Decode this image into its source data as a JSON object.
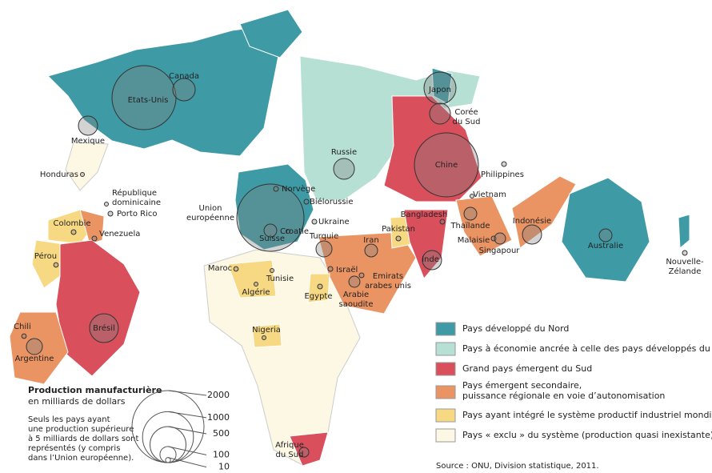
{
  "legend_classes": [
    {
      "label": [
        "Pays développé du Nord"
      ],
      "color": "#3e9ba5"
    },
    {
      "label": [
        "Pays à économie ancrée à celle des pays développés du Nord"
      ],
      "color": "#b7e0d5"
    },
    {
      "label": [
        "Grand pays émergent du Sud"
      ],
      "color": "#d94f5c"
    },
    {
      "label": [
        "Pays émergent secondaire,",
        "puissance régionale en voie d’autonomisation"
      ],
      "color": "#ea9464"
    },
    {
      "label": [
        "Pays ayant intégré le système productif industriel mondial"
      ],
      "color": "#f8d983"
    },
    {
      "label": [
        "Pays « exclu » du système (production quasi inexistante)"
      ],
      "color": "#fdf8e4"
    }
  ],
  "size_legend": {
    "title": "Production manufacturière",
    "subtitle": "en milliards de dollars",
    "values": [
      2000,
      1000,
      500,
      100,
      10
    ],
    "note": [
      "Seuls les pays ayant",
      "une production supérieure",
      "à 5 milliards de dollars sont",
      "représentés (y compris",
      "dans l’Union européenne)."
    ]
  },
  "countries": [
    {
      "label": [
        "Etats-Unis"
      ],
      "production": 1580
    },
    {
      "label": [
        "Canada"
      ],
      "production": 194
    },
    {
      "label": [
        "Mexique"
      ],
      "production": 142
    },
    {
      "label": [
        "Honduras"
      ],
      "production": 6
    },
    {
      "label": [
        "République",
        "dominicaine"
      ],
      "production": 6
    },
    {
      "label": [
        "Porto Rico"
      ],
      "production": 9
    },
    {
      "label": [
        "Venezuela"
      ],
      "production": 9
    },
    {
      "label": [
        "Colombie"
      ],
      "production": 9
    },
    {
      "label": [
        "Pérou"
      ],
      "production": 8
    },
    {
      "label": [
        "Brésil"
      ],
      "production": 320
    },
    {
      "label": [
        "Chili"
      ],
      "production": 8
    },
    {
      "label": [
        "Argentine"
      ],
      "production": 99
    },
    {
      "label": [
        "Union",
        "européenne"
      ],
      "production": 1742
    },
    {
      "label": [
        "Norvège"
      ],
      "production": 9
    },
    {
      "label": [
        "Biélorussie"
      ],
      "production": 9
    },
    {
      "label": [
        "Ukraine"
      ],
      "production": 9
    },
    {
      "label": [
        "Croatie"
      ],
      "production": 6
    },
    {
      "label": [
        "Suisse"
      ],
      "production": 63
    },
    {
      "label": [
        "Turquie"
      ],
      "production": 99
    },
    {
      "label": [
        "Russie"
      ],
      "production": 167
    },
    {
      "label": [
        "Maroc"
      ],
      "production": 8
    },
    {
      "label": [
        "Tunisie"
      ],
      "production": 6
    },
    {
      "label": [
        "Algérie"
      ],
      "production": 6
    },
    {
      "label": [
        "Israël"
      ],
      "production": 9
    },
    {
      "label": [
        "Emirats",
        "arabes unis"
      ],
      "production": 9
    },
    {
      "label": [
        "Egypte"
      ],
      "production": 9
    },
    {
      "label": [
        "Arabie",
        "saoudite"
      ],
      "production": 48
    },
    {
      "label": [
        "Iran"
      ],
      "production": 63
    },
    {
      "label": [
        "Pakistan"
      ],
      "production": 9
    },
    {
      "label": [
        "Bangladesh"
      ],
      "production": 9
    },
    {
      "label": [
        "Inde"
      ],
      "production": 142
    },
    {
      "label": [
        "Chine"
      ],
      "production": 1580
    },
    {
      "label": [
        "Japon"
      ],
      "production": 395
    },
    {
      "label": [
        "Corée",
        "du Sud"
      ],
      "production": 167
    },
    {
      "label": [
        "Philippines"
      ],
      "production": 9
    },
    {
      "label": [
        "Vietnam"
      ],
      "production": 6
    },
    {
      "label": [
        "Thaïlande"
      ],
      "production": 63
    },
    {
      "label": [
        "Malaisie"
      ],
      "production": 9
    },
    {
      "label": [
        "Singapour"
      ],
      "production": 48
    },
    {
      "label": [
        "Indonésie"
      ],
      "production": 142
    },
    {
      "label": [
        "Australie"
      ],
      "production": 63
    },
    {
      "label": [
        "Nouvelle-",
        "Zélande"
      ],
      "production": 9
    },
    {
      "label": [
        "Nigeria"
      ],
      "production": 6
    },
    {
      "label": [
        "Afrique",
        "du Sud"
      ],
      "production": 36
    }
  ],
  "source": "Source : ONU, Division statistique, 2011."
}
